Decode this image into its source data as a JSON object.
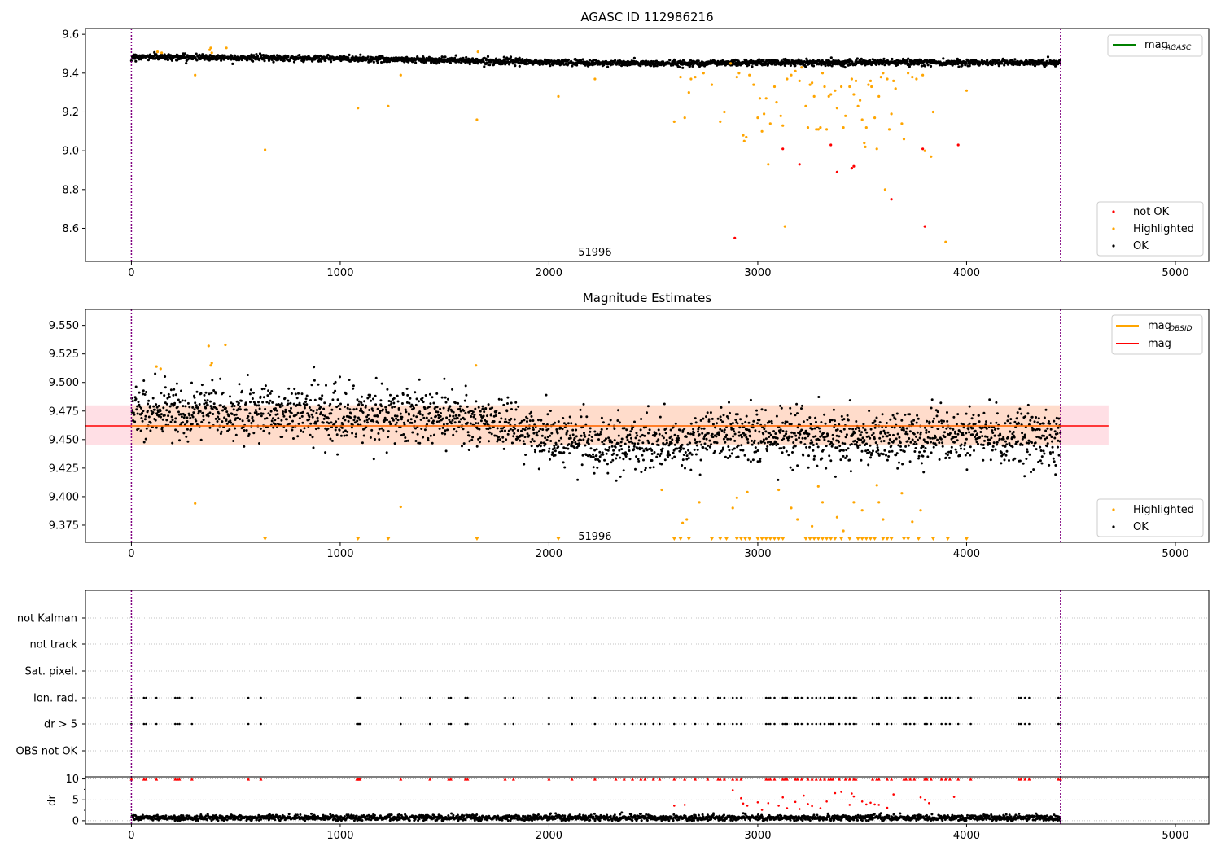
{
  "figure": {
    "background": "#ffffff"
  },
  "colors": {
    "ok": "#000000",
    "highlighted": "#ffa500",
    "not_ok": "#ff0000",
    "mag_agasc": "#008000",
    "mag": "#ff0000",
    "mag_obsid": "#ffa500",
    "band_fill": "#ffc0cb",
    "band_fill_obsid": "#ffdab9",
    "vline": "#800080",
    "grid": "#b0b0b0"
  },
  "chart_data": [
    {
      "id": "top",
      "type": "scatter",
      "title": "AGASC ID 112986216",
      "xlim": [
        -220,
        5160
      ],
      "ylim": [
        8.43,
        9.63
      ],
      "xticks": [
        0,
        1000,
        2000,
        3000,
        4000,
        5000
      ],
      "yticks": [
        8.6,
        8.8,
        9.0,
        9.2,
        9.4,
        9.6
      ],
      "ytick_labels": [
        "8.6",
        "8.8",
        "9.0",
        "9.2",
        "9.4",
        "9.6"
      ],
      "vlines": [
        0,
        4450
      ],
      "obsid_label": {
        "text": "51996",
        "x": 2220,
        "y": 8.46
      },
      "line_legend": [
        {
          "label": "mag",
          "sub": "AGASC",
          "color_key": "mag_agasc"
        }
      ],
      "scatter_legend": [
        {
          "label": "not OK",
          "color_key": "not_ok"
        },
        {
          "label": "Highlighted",
          "color_key": "highlighted"
        },
        {
          "label": "OK",
          "color_key": "ok"
        }
      ],
      "ok_trend": [
        [
          0,
          9.485
        ],
        [
          500,
          9.48
        ],
        [
          1000,
          9.475
        ],
        [
          1500,
          9.468
        ],
        [
          2000,
          9.455
        ],
        [
          2500,
          9.45
        ],
        [
          3000,
          9.455
        ],
        [
          3500,
          9.455
        ],
        [
          4000,
          9.455
        ],
        [
          4450,
          9.455
        ]
      ],
      "ok_noise": 0.014,
      "ok_count": 2200,
      "highlighted_points": [
        [
          125,
          9.51
        ],
        [
          145,
          9.505
        ],
        [
          375,
          9.52
        ],
        [
          380,
          9.53
        ],
        [
          385,
          9.505
        ],
        [
          455,
          9.53
        ],
        [
          305,
          9.39
        ],
        [
          1085,
          9.22
        ],
        [
          1230,
          9.23
        ],
        [
          1290,
          9.39
        ],
        [
          640,
          9.005
        ],
        [
          1655,
          9.16
        ],
        [
          1660,
          9.51
        ],
        [
          2045,
          9.28
        ],
        [
          2220,
          9.37
        ],
        [
          2600,
          9.15
        ],
        [
          2630,
          9.38
        ],
        [
          2650,
          9.17
        ],
        [
          2670,
          9.3
        ],
        [
          2680,
          9.37
        ],
        [
          2700,
          9.38
        ],
        [
          2740,
          9.4
        ],
        [
          2780,
          9.34
        ],
        [
          2820,
          9.15
        ],
        [
          2840,
          9.2
        ],
        [
          2870,
          9.45
        ],
        [
          2900,
          9.38
        ],
        [
          2910,
          9.4
        ],
        [
          2930,
          9.08
        ],
        [
          2935,
          9.05
        ],
        [
          2945,
          9.07
        ],
        [
          2960,
          9.39
        ],
        [
          2980,
          9.34
        ],
        [
          3000,
          9.17
        ],
        [
          3010,
          9.27
        ],
        [
          3020,
          9.1
        ],
        [
          3030,
          9.19
        ],
        [
          3040,
          9.27
        ],
        [
          3050,
          8.93
        ],
        [
          3060,
          9.14
        ],
        [
          3080,
          9.33
        ],
        [
          3090,
          9.25
        ],
        [
          3110,
          9.18
        ],
        [
          3120,
          9.13
        ],
        [
          3130,
          8.61
        ],
        [
          3140,
          9.37
        ],
        [
          3160,
          9.39
        ],
        [
          3180,
          9.41
        ],
        [
          3200,
          9.36
        ],
        [
          3210,
          9.43
        ],
        [
          3230,
          9.23
        ],
        [
          3240,
          9.12
        ],
        [
          3250,
          9.34
        ],
        [
          3260,
          9.35
        ],
        [
          3270,
          9.28
        ],
        [
          3280,
          9.11
        ],
        [
          3290,
          9.11
        ],
        [
          3300,
          9.12
        ],
        [
          3310,
          9.4
        ],
        [
          3320,
          9.33
        ],
        [
          3330,
          9.11
        ],
        [
          3340,
          9.28
        ],
        [
          3350,
          9.29
        ],
        [
          3370,
          9.31
        ],
        [
          3380,
          9.22
        ],
        [
          3400,
          9.33
        ],
        [
          3410,
          9.12
        ],
        [
          3420,
          9.18
        ],
        [
          3440,
          9.33
        ],
        [
          3450,
          9.37
        ],
        [
          3460,
          9.29
        ],
        [
          3470,
          9.36
        ],
        [
          3480,
          9.23
        ],
        [
          3490,
          9.26
        ],
        [
          3500,
          9.16
        ],
        [
          3510,
          9.04
        ],
        [
          3515,
          9.02
        ],
        [
          3520,
          9.12
        ],
        [
          3530,
          9.34
        ],
        [
          3540,
          9.36
        ],
        [
          3545,
          9.33
        ],
        [
          3560,
          9.17
        ],
        [
          3570,
          9.01
        ],
        [
          3580,
          9.28
        ],
        [
          3590,
          9.38
        ],
        [
          3600,
          9.4
        ],
        [
          3610,
          8.8
        ],
        [
          3620,
          9.37
        ],
        [
          3630,
          9.11
        ],
        [
          3640,
          9.19
        ],
        [
          3650,
          9.36
        ],
        [
          3660,
          9.32
        ],
        [
          3690,
          9.14
        ],
        [
          3700,
          9.06
        ],
        [
          3720,
          9.4
        ],
        [
          3740,
          9.38
        ],
        [
          3760,
          9.37
        ],
        [
          3790,
          9.39
        ],
        [
          3800,
          9.0
        ],
        [
          3830,
          8.97
        ],
        [
          3840,
          9.2
        ],
        [
          3900,
          8.53
        ],
        [
          4000,
          9.31
        ]
      ],
      "not_ok_points": [
        [
          2890,
          8.55
        ],
        [
          3120,
          9.01
        ],
        [
          3200,
          8.93
        ],
        [
          3350,
          9.03
        ],
        [
          3380,
          8.89
        ],
        [
          3450,
          8.91
        ],
        [
          3460,
          8.92
        ],
        [
          3640,
          8.75
        ],
        [
          3790,
          9.01
        ],
        [
          3800,
          8.61
        ],
        [
          3960,
          9.03
        ]
      ]
    },
    {
      "id": "middle",
      "type": "scatter",
      "title": "Magnitude Estimates",
      "xlim": [
        -220,
        5160
      ],
      "ylim": [
        9.36,
        9.564
      ],
      "xticks": [
        0,
        1000,
        2000,
        3000,
        4000,
        5000
      ],
      "yticks": [
        9.375,
        9.4,
        9.425,
        9.45,
        9.475,
        9.5,
        9.525,
        9.55
      ],
      "ytick_labels": [
        "9.375",
        "9.400",
        "9.425",
        "9.450",
        "9.475",
        "9.500",
        "9.525",
        "9.550"
      ],
      "vlines": [
        0,
        4450
      ],
      "obsid_label": {
        "text": "51996",
        "x": 2220,
        "y": 9.362
      },
      "mag_value": 9.462,
      "mag_band": [
        9.445,
        9.48
      ],
      "mag_band_xrange": [
        -220,
        4680
      ],
      "mag_obsid_value": 9.462,
      "mag_obsid_band": [
        9.445,
        9.48
      ],
      "mag_obsid_xrange": [
        0,
        4450
      ],
      "line_legend": [
        {
          "label": "mag",
          "sub": "OBSID",
          "color_key": "mag_obsid"
        },
        {
          "label": "mag",
          "sub": "",
          "color_key": "mag"
        }
      ],
      "scatter_legend": [
        {
          "label": "Highlighted",
          "color_key": "highlighted"
        },
        {
          "label": "OK",
          "color_key": "ok"
        }
      ],
      "ok_trend": [
        [
          0,
          9.475
        ],
        [
          500,
          9.475
        ],
        [
          1000,
          9.472
        ],
        [
          1500,
          9.47
        ],
        [
          1800,
          9.465
        ],
        [
          2000,
          9.452
        ],
        [
          2500,
          9.445
        ],
        [
          2800,
          9.452
        ],
        [
          3000,
          9.455
        ],
        [
          3500,
          9.45
        ],
        [
          4000,
          9.455
        ],
        [
          4450,
          9.45
        ]
      ],
      "ok_noise": 0.012,
      "ok_count": 2400,
      "highlighted_points": [
        [
          120,
          9.514
        ],
        [
          140,
          9.512
        ],
        [
          370,
          9.532
        ],
        [
          380,
          9.515
        ],
        [
          385,
          9.517
        ],
        [
          450,
          9.533
        ],
        [
          305,
          9.394
        ],
        [
          1290,
          9.391
        ],
        [
          1650,
          9.515
        ],
        [
          2540,
          9.406
        ],
        [
          2640,
          9.377
        ],
        [
          2660,
          9.38
        ],
        [
          2720,
          9.395
        ],
        [
          2880,
          9.39
        ],
        [
          2900,
          9.399
        ],
        [
          2950,
          9.404
        ],
        [
          3100,
          9.406
        ],
        [
          3160,
          9.39
        ],
        [
          3190,
          9.38
        ],
        [
          3260,
          9.374
        ],
        [
          3290,
          9.409
        ],
        [
          3310,
          9.395
        ],
        [
          3380,
          9.382
        ],
        [
          3410,
          9.37
        ],
        [
          3460,
          9.395
        ],
        [
          3500,
          9.388
        ],
        [
          3570,
          9.41
        ],
        [
          3580,
          9.395
        ],
        [
          3600,
          9.38
        ],
        [
          3690,
          9.403
        ],
        [
          3740,
          9.378
        ],
        [
          3780,
          9.388
        ]
      ],
      "clipped_x": [
        640,
        1085,
        1230,
        1655,
        2045,
        2600,
        2630,
        2670,
        2780,
        2820,
        2850,
        2900,
        2920,
        2940,
        2960,
        3000,
        3020,
        3040,
        3060,
        3080,
        3100,
        3120,
        3230,
        3250,
        3270,
        3290,
        3310,
        3330,
        3350,
        3370,
        3400,
        3440,
        3480,
        3500,
        3520,
        3540,
        3560,
        3600,
        3620,
        3640,
        3700,
        3720,
        3770,
        3840,
        3910,
        4000
      ]
    },
    {
      "id": "flags",
      "type": "scatter",
      "xlim": [
        -220,
        5160
      ],
      "vlines": [
        0,
        4450
      ],
      "rows": [
        "not Kalman",
        "not track",
        "Sat. pixel.",
        "Ion. rad.",
        "dr > 5",
        "OBS not OK"
      ],
      "flag_x": [
        0,
        60,
        70,
        120,
        210,
        220,
        230,
        290,
        560,
        620,
        1080,
        1085,
        1090,
        1095,
        1290,
        1430,
        1520,
        1530,
        1600,
        1610,
        1790,
        1830,
        2000,
        2110,
        2220,
        2320,
        2360,
        2400,
        2440,
        2460,
        2500,
        2530,
        2600,
        2650,
        2700,
        2760,
        2810,
        2820,
        2840,
        2880,
        2900,
        2920,
        3040,
        3050,
        3060,
        3080,
        3120,
        3130,
        3140,
        3180,
        3190,
        3210,
        3240,
        3260,
        3280,
        3300,
        3320,
        3340,
        3350,
        3360,
        3390,
        3420,
        3440,
        3460,
        3470,
        3550,
        3570,
        3580,
        3620,
        3640,
        3700,
        3710,
        3730,
        3750,
        3800,
        3810,
        3830,
        3880,
        3900,
        3920,
        3960,
        4020,
        4250,
        4260,
        4280,
        4300,
        4440,
        4450
      ]
    },
    {
      "id": "dr",
      "type": "scatter",
      "ylabel": "dr",
      "xlim": [
        -220,
        5160
      ],
      "ylim": [
        -0.8,
        10.5
      ],
      "xticks": [
        0,
        1000,
        2000,
        3000,
        4000,
        5000
      ],
      "yticks": [
        0,
        5,
        10
      ],
      "ytick_labels": [
        "0",
        "5",
        "10"
      ],
      "vlines": [
        0,
        4450
      ],
      "ok_count": 2200,
      "ok_level": 0.7,
      "not_ok_scatter": [
        [
          2600,
          3.6
        ],
        [
          2650,
          3.8
        ],
        [
          2880,
          7.3
        ],
        [
          2920,
          5.4
        ],
        [
          2930,
          4.1
        ],
        [
          2950,
          3.6
        ],
        [
          3000,
          4.4
        ],
        [
          3020,
          2.6
        ],
        [
          3050,
          4.2
        ],
        [
          3100,
          3.6
        ],
        [
          3120,
          5.6
        ],
        [
          3140,
          3.0
        ],
        [
          3180,
          4.5
        ],
        [
          3200,
          2.8
        ],
        [
          3220,
          6.0
        ],
        [
          3240,
          4.0
        ],
        [
          3260,
          3.5
        ],
        [
          3300,
          3.0
        ],
        [
          3330,
          4.6
        ],
        [
          3370,
          6.6
        ],
        [
          3400,
          6.9
        ],
        [
          3440,
          3.8
        ],
        [
          3450,
          6.5
        ],
        [
          3460,
          5.8
        ],
        [
          3500,
          4.6
        ],
        [
          3520,
          3.9
        ],
        [
          3540,
          4.3
        ],
        [
          3560,
          3.9
        ],
        [
          3580,
          3.8
        ],
        [
          3620,
          3.1
        ],
        [
          3650,
          6.3
        ],
        [
          3780,
          5.6
        ],
        [
          3800,
          5.0
        ],
        [
          3820,
          4.2
        ],
        [
          3940,
          5.7
        ]
      ]
    }
  ]
}
